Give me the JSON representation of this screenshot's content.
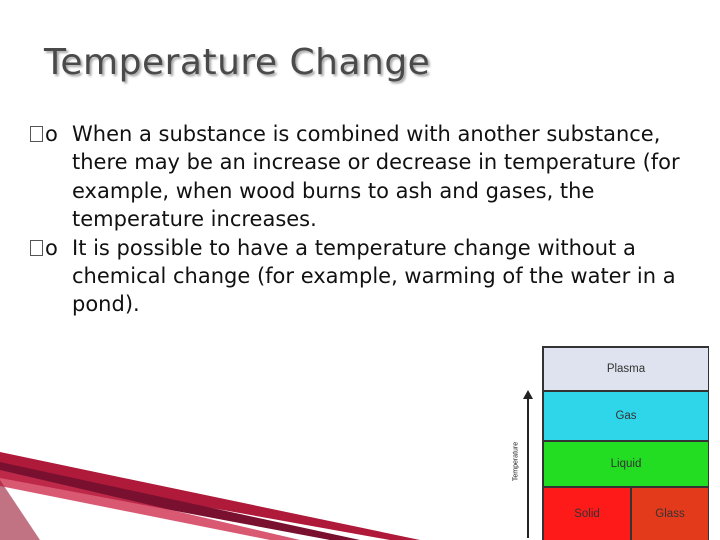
{
  "slide": {
    "title": "Temperature Change",
    "bullet_marker": "o",
    "bullets": [
      "When a substance is combined with another substance, there may be an increase or decrease in temperature (for example, when wood burns to ash and gases, the temperature increases.",
      "It is possible to have a temperature change without a chemical change (for example, warming of the water in a pond)."
    ]
  },
  "diagram": {
    "axis_label": "Temperature",
    "phases": {
      "plasma": "Plasma",
      "gas": "Gas",
      "liquid": "Liquid",
      "solid": "Solid",
      "glass": "Glass"
    },
    "colors": {
      "plasma": "#dfe3ef",
      "gas": "#2fd6ea",
      "liquid": "#22dd22",
      "solid": "#ff1a1a",
      "glass": "#e43a1c"
    }
  }
}
